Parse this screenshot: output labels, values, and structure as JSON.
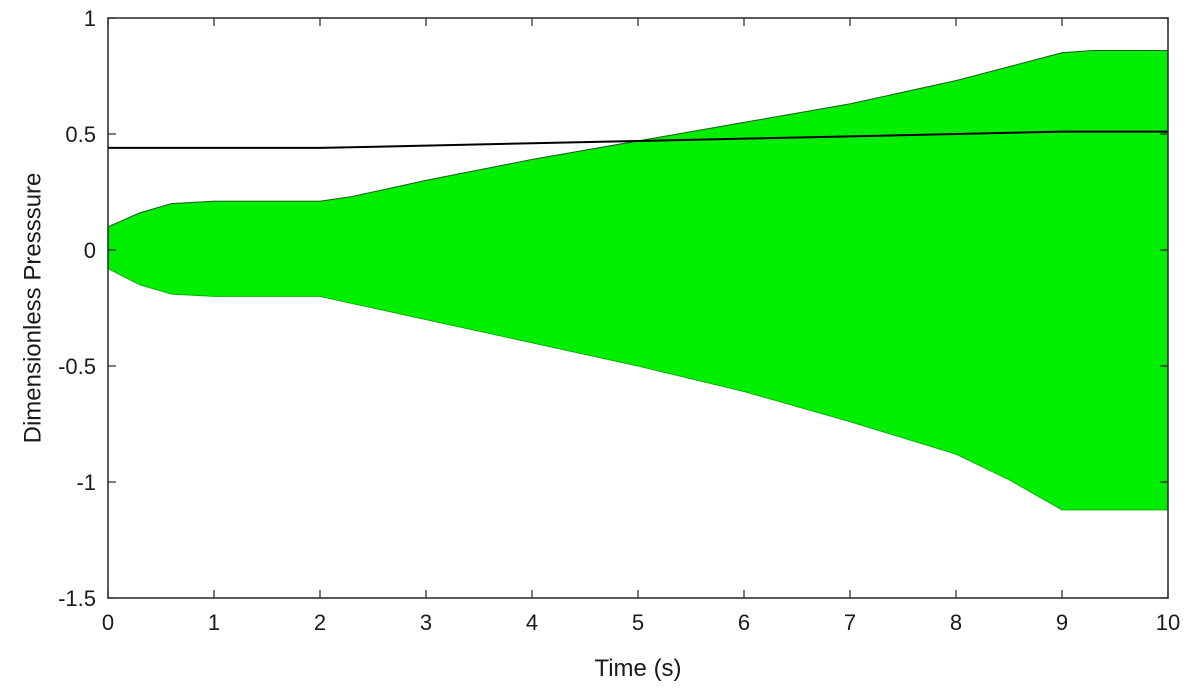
{
  "chart_data": {
    "type": "area",
    "title": "",
    "xlabel": "Time (s)",
    "ylabel": "Dimensionless Presssure",
    "xlim": [
      0,
      10
    ],
    "ylim": [
      -1.5,
      1
    ],
    "xticks": [
      0,
      1,
      2,
      3,
      4,
      5,
      6,
      7,
      8,
      9,
      10
    ],
    "yticks": [
      -1.5,
      -1,
      -0.5,
      0,
      0.5,
      1
    ],
    "xtick_labels": [
      "0",
      "1",
      "2",
      "3",
      "4",
      "5",
      "6",
      "7",
      "8",
      "9",
      "10"
    ],
    "ytick_labels": [
      "-1.5",
      "-1",
      "-0.5",
      "0",
      "0.5",
      "1"
    ],
    "grid": false,
    "legend": "none",
    "series": [
      {
        "kind": "envelope",
        "color": "#00ee00",
        "x": [
          0,
          0.3,
          0.6,
          1.0,
          1.5,
          2.0,
          2.3,
          3.0,
          4.0,
          5.0,
          6.0,
          7.0,
          8.0,
          8.5,
          9.0,
          9.3,
          10.0
        ],
        "upper": [
          0.1,
          0.16,
          0.2,
          0.21,
          0.21,
          0.21,
          0.23,
          0.3,
          0.39,
          0.47,
          0.55,
          0.63,
          0.73,
          0.79,
          0.85,
          0.86,
          0.86
        ],
        "lower": [
          -0.08,
          -0.15,
          -0.19,
          -0.2,
          -0.2,
          -0.2,
          -0.23,
          -0.3,
          -0.4,
          -0.5,
          -0.61,
          -0.74,
          -0.88,
          -0.99,
          -1.12,
          -1.12,
          -1.12
        ]
      },
      {
        "kind": "line",
        "color": "#000000",
        "x": [
          0,
          2.0,
          3.0,
          4.0,
          5.0,
          6.0,
          7.0,
          8.0,
          9.0,
          10.0
        ],
        "y": [
          0.44,
          0.44,
          0.45,
          0.46,
          0.47,
          0.48,
          0.49,
          0.5,
          0.51,
          0.51
        ]
      }
    ]
  }
}
